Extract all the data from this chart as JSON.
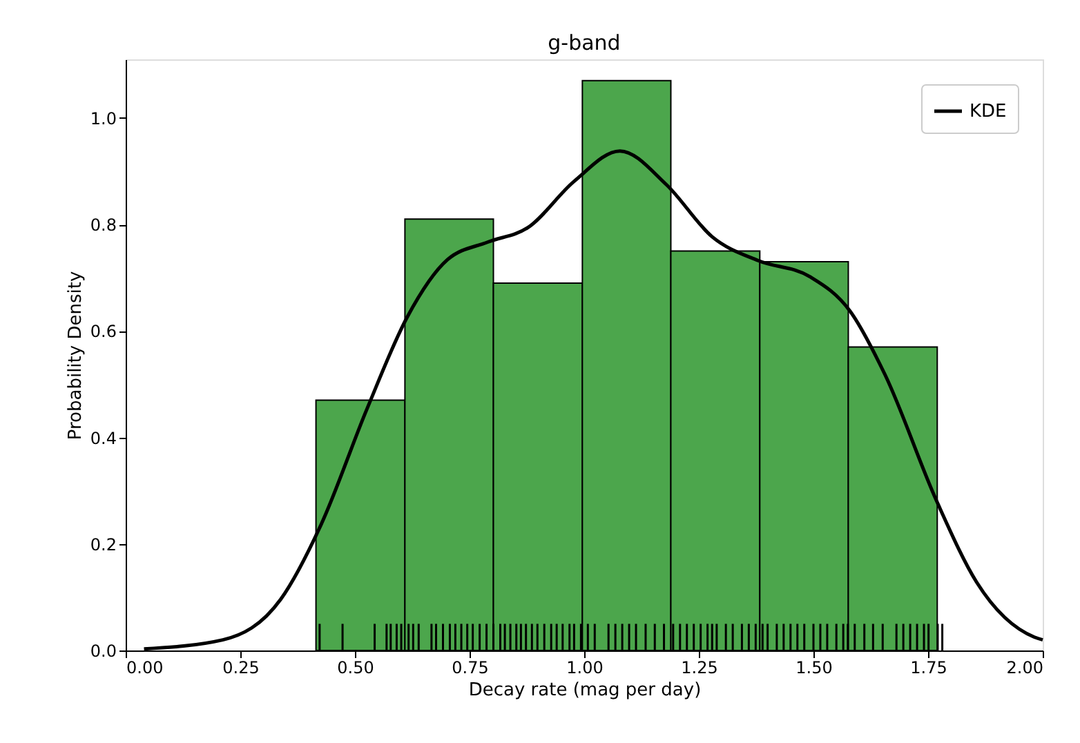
{
  "chart_data": {
    "type": "histogram",
    "title": "g-band",
    "xlabel": "Decay rate (mag per day)",
    "ylabel": "Probability Density",
    "bins": [
      0.415,
      0.609,
      0.802,
      0.996,
      1.189,
      1.383,
      1.576,
      1.77
    ],
    "values": [
      0.47,
      0.81,
      0.69,
      1.07,
      0.75,
      0.73,
      0.57
    ],
    "color": "#4ca64c",
    "series": [
      {
        "name": "KDE",
        "type": "line",
        "color": "#000000",
        "x": [
          0.04,
          0.212,
          0.338,
          0.426,
          0.526,
          0.614,
          0.702,
          0.79,
          0.877,
          0.978,
          1.078,
          1.179,
          1.279,
          1.38,
          1.492,
          1.58,
          1.656,
          1.769,
          1.856,
          1.982,
          2.0
        ],
        "values": [
          0.003,
          0.02,
          0.096,
          0.236,
          0.453,
          0.626,
          0.734,
          0.767,
          0.794,
          0.881,
          0.938,
          0.875,
          0.777,
          0.732,
          0.702,
          0.637,
          0.518,
          0.28,
          0.128,
          0.025,
          0.02
        ]
      },
      {
        "type": "bar",
        "color": "#000000",
        "x": [
          0.423,
          0.473,
          0.543,
          0.569,
          0.578,
          0.591,
          0.601,
          0.617,
          0.627,
          0.639,
          0.667,
          0.677,
          0.692,
          0.707,
          0.719,
          0.732,
          0.745,
          0.757,
          0.772,
          0.787,
          0.802,
          0.817,
          0.827,
          0.839,
          0.852,
          0.862,
          0.873,
          0.886,
          0.898,
          0.913,
          0.928,
          0.94,
          0.953,
          0.968,
          0.978,
          0.993,
          1.008,
          1.023,
          1.053,
          1.068,
          1.083,
          1.098,
          1.113,
          1.134,
          1.154,
          1.174,
          1.194,
          1.209,
          1.224,
          1.239,
          1.254,
          1.269,
          1.279,
          1.289,
          1.309,
          1.324,
          1.344,
          1.359,
          1.374,
          1.389,
          1.4,
          1.42,
          1.435,
          1.45,
          1.465,
          1.48,
          1.5,
          1.515,
          1.53,
          1.55,
          1.565,
          1.575,
          1.59,
          1.611,
          1.63,
          1.651,
          1.681,
          1.696,
          1.711,
          1.726,
          1.741,
          1.751,
          1.771,
          1.781
        ],
        "values": [
          0.05,
          0.05,
          0.05,
          0.05,
          0.05,
          0.05,
          0.05,
          0.05,
          0.05,
          0.05,
          0.05,
          0.05,
          0.05,
          0.05,
          0.05,
          0.05,
          0.05,
          0.05,
          0.05,
          0.05,
          0.05,
          0.05,
          0.05,
          0.05,
          0.05,
          0.05,
          0.05,
          0.05,
          0.05,
          0.05,
          0.05,
          0.05,
          0.05,
          0.05,
          0.05,
          0.05,
          0.05,
          0.05,
          0.05,
          0.05,
          0.05,
          0.05,
          0.05,
          0.05,
          0.05,
          0.05,
          0.05,
          0.05,
          0.05,
          0.05,
          0.05,
          0.05,
          0.05,
          0.05,
          0.05,
          0.05,
          0.05,
          0.05,
          0.05,
          0.05,
          0.05,
          0.05,
          0.05,
          0.05,
          0.05,
          0.05,
          0.05,
          0.05,
          0.05,
          0.05,
          0.05,
          0.05,
          0.05,
          0.05,
          0.05,
          0.05,
          0.05,
          0.05,
          0.05,
          0.05,
          0.05,
          0.05,
          0.05,
          0.05
        ]
      }
    ],
    "xlim": [
      0,
      2
    ],
    "ylim": [
      0,
      1.11
    ],
    "xticks": [
      {
        "value": 0,
        "label": "0.00"
      },
      {
        "value": 0.25,
        "label": "0.25"
      },
      {
        "value": 0.5,
        "label": "0.50"
      },
      {
        "value": 0.75,
        "label": "0.75"
      },
      {
        "value": 1,
        "label": "1.00"
      },
      {
        "value": 1.25,
        "label": "1.25"
      },
      {
        "value": 1.5,
        "label": "1.50"
      },
      {
        "value": 1.75,
        "label": "1.75"
      },
      {
        "value": 2,
        "label": "2.00"
      }
    ],
    "yticks": [
      {
        "value": 0,
        "label": "0.0"
      },
      {
        "value": 0.2,
        "label": "0.2"
      },
      {
        "value": 0.4,
        "label": "0.4"
      },
      {
        "value": 0.6,
        "label": "0.6"
      },
      {
        "value": 0.8,
        "label": "0.8"
      },
      {
        "value": 1,
        "label": "1.0"
      }
    ],
    "legend": "top right",
    "grid": false
  }
}
